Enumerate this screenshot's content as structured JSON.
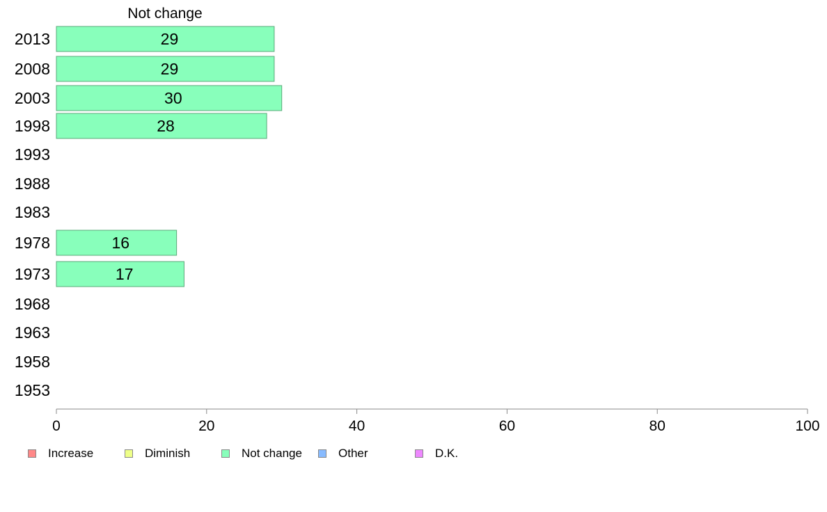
{
  "chart_data": {
    "type": "bar",
    "orientation": "horizontal",
    "title": "Not change",
    "categories": [
      "2013",
      "2008",
      "2003",
      "1998",
      "1993",
      "1988",
      "1983",
      "1978",
      "1973",
      "1968",
      "1963",
      "1958",
      "1953"
    ],
    "series": [
      {
        "name": "Not change",
        "color": "#88ffbb",
        "values": [
          29,
          29,
          30,
          28,
          null,
          null,
          null,
          16,
          17,
          null,
          null,
          null,
          null
        ],
        "labels": [
          "29",
          "29",
          "30",
          "28",
          "",
          "",
          "",
          "16",
          "17",
          "",
          "",
          "",
          ""
        ]
      }
    ],
    "xlim": [
      0,
      100
    ],
    "xticks": [
      "0",
      "20",
      "40",
      "60",
      "80",
      "100"
    ],
    "grid": false,
    "legend_placement": "bottom-left",
    "legend": [
      {
        "label": "Increase",
        "color": "#ff8888"
      },
      {
        "label": "Diminish",
        "color": "#eeff88"
      },
      {
        "label": "Not change",
        "color": "#88ffbb"
      },
      {
        "label": "Other",
        "color": "#88bbff"
      },
      {
        "label": "D.K.",
        "color": "#ee88ff"
      }
    ]
  }
}
